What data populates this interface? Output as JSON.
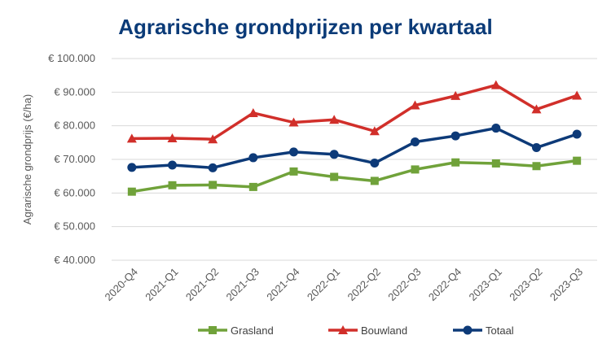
{
  "chart_data": {
    "type": "line",
    "title": "Agrarische grondprijzen per kwartaal",
    "xlabel": "",
    "ylabel": "Agrarische grondprijs (€/ha)",
    "ylim": [
      40000,
      100000
    ],
    "yticks": [
      "€ 40.000",
      "€ 50.000",
      "€ 60.000",
      "€ 70.000",
      "€ 80.000",
      "€ 90.000",
      "€ 100.000"
    ],
    "categories": [
      "2020-Q4",
      "2021-Q1",
      "2021-Q2",
      "2021-Q3",
      "2021-Q4",
      "2022-Q1",
      "2022-Q2",
      "2022-Q3",
      "2022-Q4",
      "2023-Q1",
      "2023-Q2",
      "2023-Q3"
    ],
    "grid": true,
    "legend_position": "bottom",
    "series": [
      {
        "name": "Grasland",
        "color": "#70a23a",
        "marker": "square",
        "values": [
          60400,
          62300,
          62400,
          61800,
          66400,
          64800,
          63600,
          67000,
          69100,
          68800,
          68000,
          69600
        ]
      },
      {
        "name": "Bouwland",
        "color": "#d12f2a",
        "marker": "triangle",
        "values": [
          76200,
          76300,
          76000,
          83800,
          81000,
          81800,
          78400,
          86100,
          88900,
          92100,
          84900,
          89000
        ]
      },
      {
        "name": "Totaal",
        "color": "#0d3a78",
        "marker": "circle",
        "values": [
          67600,
          68300,
          67500,
          70500,
          72200,
          71500,
          68900,
          75200,
          77000,
          79300,
          73500,
          77500
        ]
      }
    ]
  }
}
